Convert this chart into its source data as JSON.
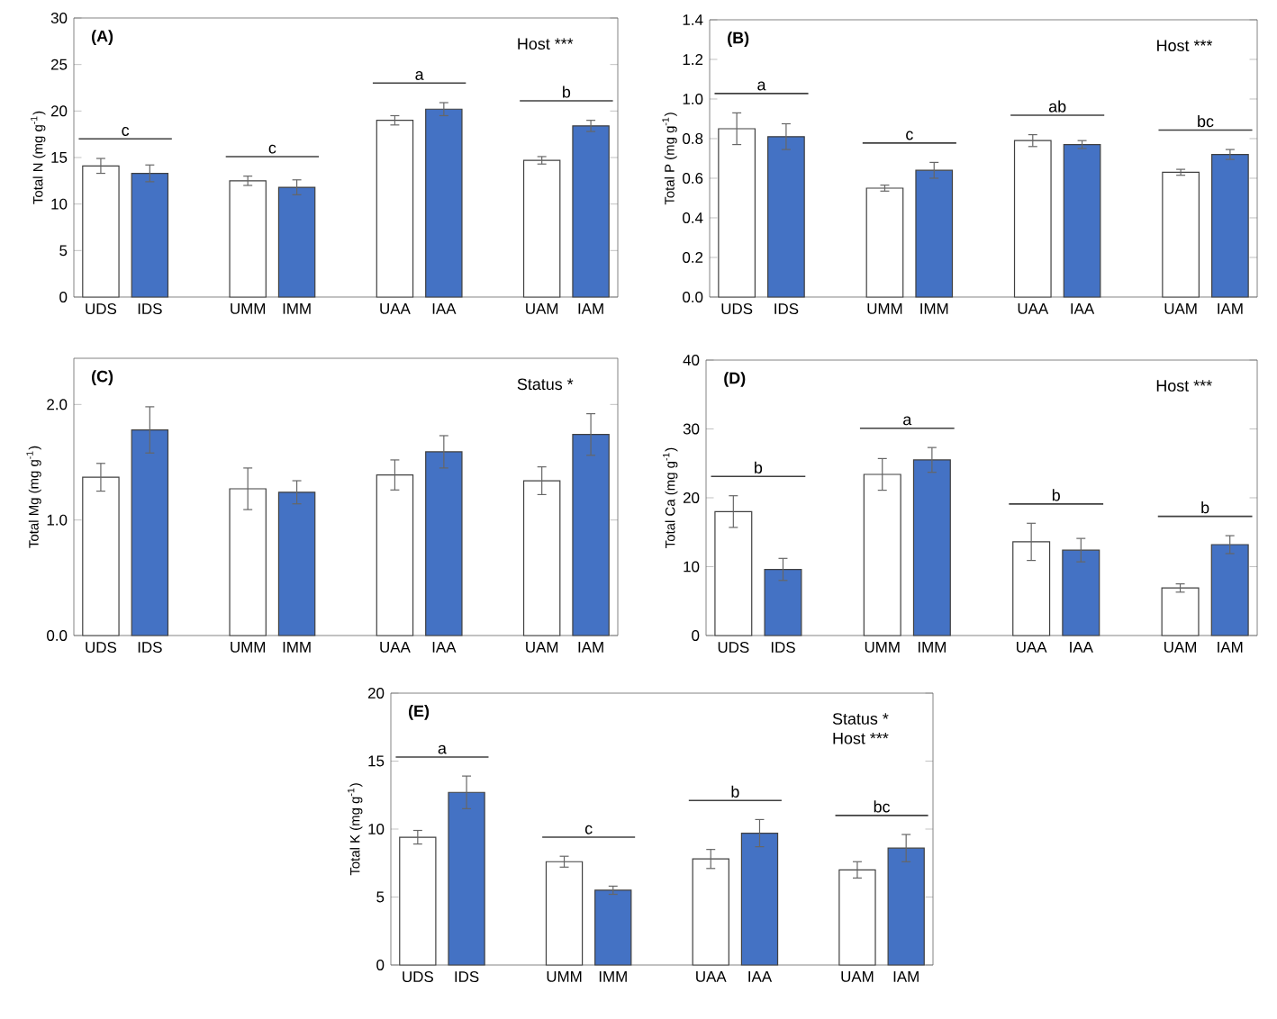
{
  "chart_data": [
    {
      "type": "bar",
      "title": "(A)",
      "ylabel": "Total N (mg g$^{-1}$)",
      "categories": [
        "UDS",
        "IDS",
        "UMM",
        "IMM",
        "UAA",
        "IAA",
        "UAM",
        "IAM"
      ],
      "values": [
        14.1,
        13.3,
        12.5,
        11.8,
        19.0,
        20.2,
        14.7,
        18.4
      ],
      "errors": [
        0.8,
        0.9,
        0.5,
        0.8,
        0.5,
        0.7,
        0.4,
        0.6
      ],
      "colors": [
        "#ffffff",
        "#4472c4",
        "#ffffff",
        "#4472c4",
        "#ffffff",
        "#4472c4",
        "#ffffff",
        "#4472c4"
      ],
      "ylim": [
        0,
        30
      ],
      "yticks": [
        0,
        5,
        10,
        15,
        20,
        25,
        30
      ],
      "annotations": [
        "c",
        "c",
        "a",
        "b",
        "Host ***"
      ]
    },
    {
      "type": "bar",
      "title": "(B)",
      "ylabel": "Total P (mg g$^{-1}$)",
      "categories": [
        "UDS",
        "IDS",
        "UMM",
        "IMM",
        "UAA",
        "IAA",
        "UAM",
        "IAM"
      ],
      "values": [
        0.85,
        0.81,
        0.55,
        0.64,
        0.79,
        0.77,
        0.63,
        0.72
      ],
      "errors": [
        0.08,
        0.065,
        0.015,
        0.04,
        0.03,
        0.02,
        0.015,
        0.025
      ],
      "colors": [
        "#ffffff",
        "#4472c4",
        "#ffffff",
        "#4472c4",
        "#ffffff",
        "#4472c4",
        "#ffffff",
        "#4472c4"
      ],
      "ylim": [
        0,
        1.4
      ],
      "yticks": [
        {
          "value": 0,
          "label": "0.0"
        },
        {
          "value": 0.2,
          "label": "0.2"
        },
        {
          "value": 0.4,
          "label": "0.4"
        },
        {
          "value": 0.6,
          "label": "0.6"
        },
        {
          "value": 0.8,
          "label": "0.8"
        },
        {
          "value": 1.0,
          "label": "1.0"
        },
        {
          "value": 1.2,
          "label": "1.2"
        },
        {
          "value": 1.4,
          "label": "1.4"
        }
      ],
      "annotations": [
        "a",
        "c",
        "ab",
        "bc",
        "Host ***"
      ]
    },
    {
      "type": "bar",
      "title": "(C)",
      "ylabel": "Total Mg (mg g$^{-1}$)",
      "categories": [
        "UDS",
        "IDS",
        "UMM",
        "IMM",
        "UAA",
        "IAA",
        "UAM",
        "IAM"
      ],
      "values": [
        1.37,
        1.78,
        1.27,
        1.24,
        1.39,
        1.59,
        1.34,
        1.74
      ],
      "errors": [
        0.12,
        0.2,
        0.18,
        0.1,
        0.13,
        0.14,
        0.12,
        0.18
      ],
      "colors": [
        "#ffffff",
        "#4472c4",
        "#ffffff",
        "#4472c4",
        "#ffffff",
        "#4472c4",
        "#ffffff",
        "#4472c4"
      ],
      "ylim": [
        0,
        2.4
      ],
      "yticks": [
        {
          "value": 0,
          "label": "0.0"
        },
        {
          "value": 1.0,
          "label": "1.0"
        },
        {
          "value": 2.0,
          "label": "2.0"
        }
      ],
      "annotations": [
        "Status *"
      ]
    },
    {
      "type": "bar",
      "title": "(D)",
      "ylabel": "Total Ca (mg g$^{-1}$)",
      "categories": [
        "UDS",
        "IDS",
        "UMM",
        "IMM",
        "UAA",
        "IAA",
        "UAM",
        "IAM"
      ],
      "values": [
        18.0,
        9.6,
        23.4,
        25.5,
        13.6,
        12.4,
        6.9,
        13.2
      ],
      "errors": [
        2.3,
        1.6,
        2.3,
        1.8,
        2.7,
        1.7,
        0.6,
        1.3
      ],
      "colors": [
        "#ffffff",
        "#4472c4",
        "#ffffff",
        "#4472c4",
        "#ffffff",
        "#4472c4",
        "#ffffff",
        "#4472c4"
      ],
      "ylim": [
        0,
        40
      ],
      "yticks": [
        0,
        10,
        20,
        30,
        40
      ],
      "annotations": [
        "b",
        "a",
        "b",
        "b",
        "Host ***"
      ]
    },
    {
      "type": "bar",
      "title": "(E)",
      "ylabel": "Total K (mg g$^{-1}$)",
      "categories": [
        "UDS",
        "IDS",
        "UMM",
        "IMM",
        "UAA",
        "IAA",
        "UAM",
        "IAM"
      ],
      "values": [
        9.4,
        12.7,
        7.6,
        5.5,
        7.8,
        9.7,
        7.0,
        8.6
      ],
      "errors": [
        0.5,
        1.2,
        0.4,
        0.3,
        0.7,
        1.0,
        0.6,
        1.0
      ],
      "colors": [
        "#ffffff",
        "#4472c4",
        "#ffffff",
        "#4472c4",
        "#ffffff",
        "#4472c4",
        "#ffffff",
        "#4472c4"
      ],
      "ylim": [
        0,
        20
      ],
      "yticks": [
        0,
        5,
        10,
        15,
        20
      ],
      "annotations": [
        "a",
        "c",
        "b",
        "bc",
        "Status *",
        "Host ***"
      ]
    }
  ]
}
